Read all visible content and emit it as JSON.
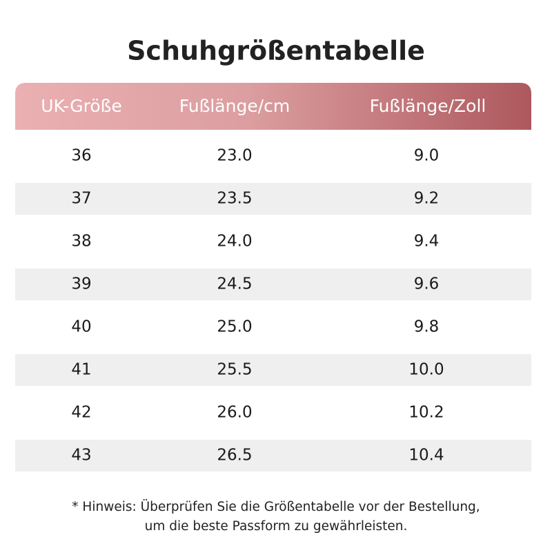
{
  "title": "Schuhgrößentabelle",
  "table": {
    "header": [
      "UK-Größe",
      "Fußlänge/cm",
      "Fußlänge/Zoll"
    ],
    "rows": [
      [
        "36",
        "23.0",
        "9.0"
      ],
      [
        "37",
        "23.5",
        "9.2"
      ],
      [
        "38",
        "24.0",
        "9.4"
      ],
      [
        "39",
        "24.5",
        "9.6"
      ],
      [
        "40",
        "25.0",
        "9.8"
      ],
      [
        "41",
        "25.5",
        "10.0"
      ],
      [
        "42",
        "26.0",
        "10.2"
      ],
      [
        "43",
        "26.5",
        "10.4"
      ]
    ]
  },
  "note": [
    "* Hinweis: Überprüfen Sie die Größentabelle vor der Bestellung,",
    "um die beste Passform zu gewährleisten."
  ]
}
